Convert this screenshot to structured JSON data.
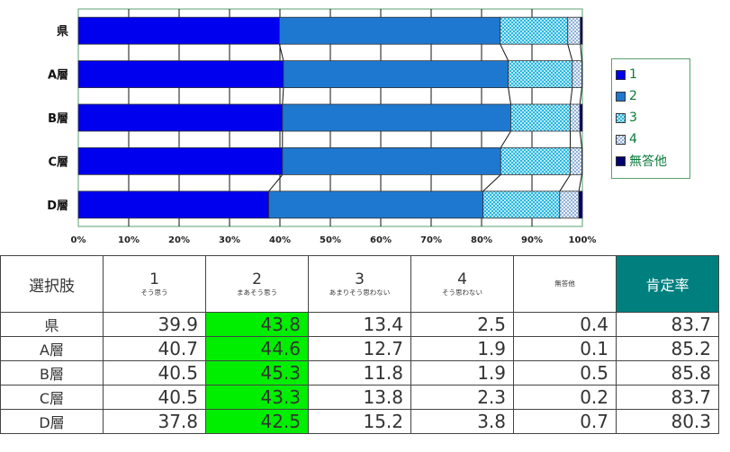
{
  "chart_data": {
    "type": "bar",
    "orientation": "horizontal",
    "stacked": "100%",
    "categories": [
      "県",
      "A層",
      "B層",
      "C層",
      "D層"
    ],
    "series": [
      {
        "name": "1",
        "values": [
          39.9,
          40.7,
          40.5,
          40.5,
          37.8
        ],
        "color": "#0000ee",
        "pattern": "solid"
      },
      {
        "name": "2",
        "values": [
          43.8,
          44.6,
          45.3,
          43.3,
          42.5
        ],
        "color": "#1e78d0",
        "pattern": "solid"
      },
      {
        "name": "3",
        "values": [
          13.4,
          12.7,
          11.8,
          13.8,
          15.2
        ],
        "color": "#6fd6f0",
        "pattern": "checker"
      },
      {
        "name": "4",
        "values": [
          2.5,
          1.9,
          1.9,
          2.3,
          3.8
        ],
        "color": "#a8c8e8",
        "pattern": "checker-light"
      },
      {
        "name": "無答他",
        "values": [
          0.4,
          0.1,
          0.5,
          0.2,
          0.7
        ],
        "color": "#000070",
        "pattern": "solid"
      }
    ],
    "xlim": [
      0,
      100
    ],
    "xticks": [
      "0%",
      "10%",
      "20%",
      "30%",
      "40%",
      "50%",
      "60%",
      "70%",
      "80%",
      "90%",
      "100%"
    ],
    "grid": true,
    "series_lines": true,
    "legend_position": "right"
  },
  "table": {
    "corner": "選択肢",
    "columns": [
      {
        "num": "1",
        "sub": "そう思う"
      },
      {
        "num": "2",
        "sub": "まあそう思う"
      },
      {
        "num": "3",
        "sub": "あまりそう思わない"
      },
      {
        "num": "4",
        "sub": "そう思わない"
      },
      {
        "num": "",
        "sub": "無答他"
      }
    ],
    "rate_header": "肯定率",
    "rows": [
      {
        "label": "県",
        "cells": [
          "39.9",
          "43.8",
          "13.4",
          "2.5",
          "0.4",
          "83.7"
        ]
      },
      {
        "label": "A層",
        "cells": [
          "40.7",
          "44.6",
          "12.7",
          "1.9",
          "0.1",
          "85.2"
        ]
      },
      {
        "label": "B層",
        "cells": [
          "40.5",
          "45.3",
          "11.8",
          "1.9",
          "0.5",
          "85.8"
        ]
      },
      {
        "label": "C層",
        "cells": [
          "40.5",
          "43.3",
          "13.8",
          "2.3",
          "0.2",
          "83.7"
        ]
      },
      {
        "label": "D層",
        "cells": [
          "37.8",
          "42.5",
          "15.2",
          "3.8",
          "0.7",
          "80.3"
        ]
      }
    ],
    "highlight_column": 1,
    "highlight_color": "#00ee00",
    "rate_header_color": "#007f7f"
  }
}
